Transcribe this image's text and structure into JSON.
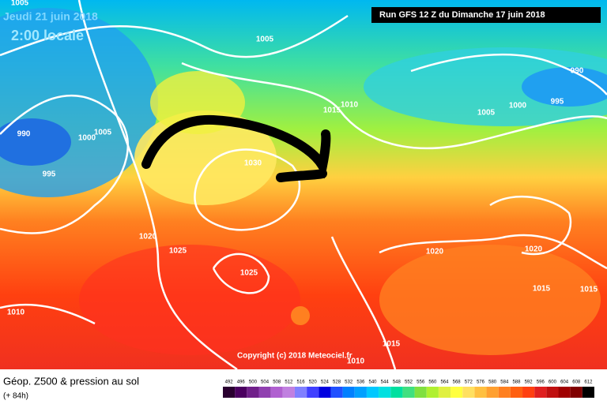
{
  "header": {
    "date": "Jeudi 21 juin 2018",
    "time": "2:00 locale",
    "run": "Run GFS 12 Z du Dimanche 17 juin 2018"
  },
  "copyright": "Copyright (c) 2018 Meteociel.fr",
  "footer": {
    "title": "Géop. Z500 & pression au sol",
    "lead": "(+ 84h)"
  },
  "scale": {
    "labels": [
      "492",
      "496",
      "500",
      "504",
      "508",
      "512",
      "516",
      "520",
      "524",
      "528",
      "532",
      "536",
      "540",
      "544",
      "548",
      "552",
      "556",
      "560",
      "564",
      "568",
      "572",
      "576",
      "580",
      "584",
      "588",
      "592",
      "596",
      "600",
      "604",
      "608",
      "612"
    ],
    "colors": [
      "#2a0030",
      "#4b0060",
      "#70208a",
      "#9040b0",
      "#b060d0",
      "#c080e0",
      "#8080ff",
      "#4040ff",
      "#0000e0",
      "#2050ff",
      "#0080ff",
      "#00a0ff",
      "#00c8ff",
      "#00e0e0",
      "#00e0a0",
      "#40e080",
      "#80e040",
      "#b0f030",
      "#e0f040",
      "#ffff40",
      "#ffe060",
      "#ffc040",
      "#ffa030",
      "#ff8020",
      "#ff6010",
      "#ff4010",
      "#e02020",
      "#c01010",
      "#a00000",
      "#800000",
      "#000000"
    ]
  },
  "isobar_labels": [
    "1005",
    "1005",
    "990",
    "1015",
    "1010",
    "1000",
    "995",
    "1005",
    "990",
    "1005",
    "1000",
    "995",
    "1030",
    "1020",
    "1025",
    "1025",
    "1020",
    "1020",
    "1015",
    "1015",
    "1010",
    "1015",
    "1010"
  ]
}
